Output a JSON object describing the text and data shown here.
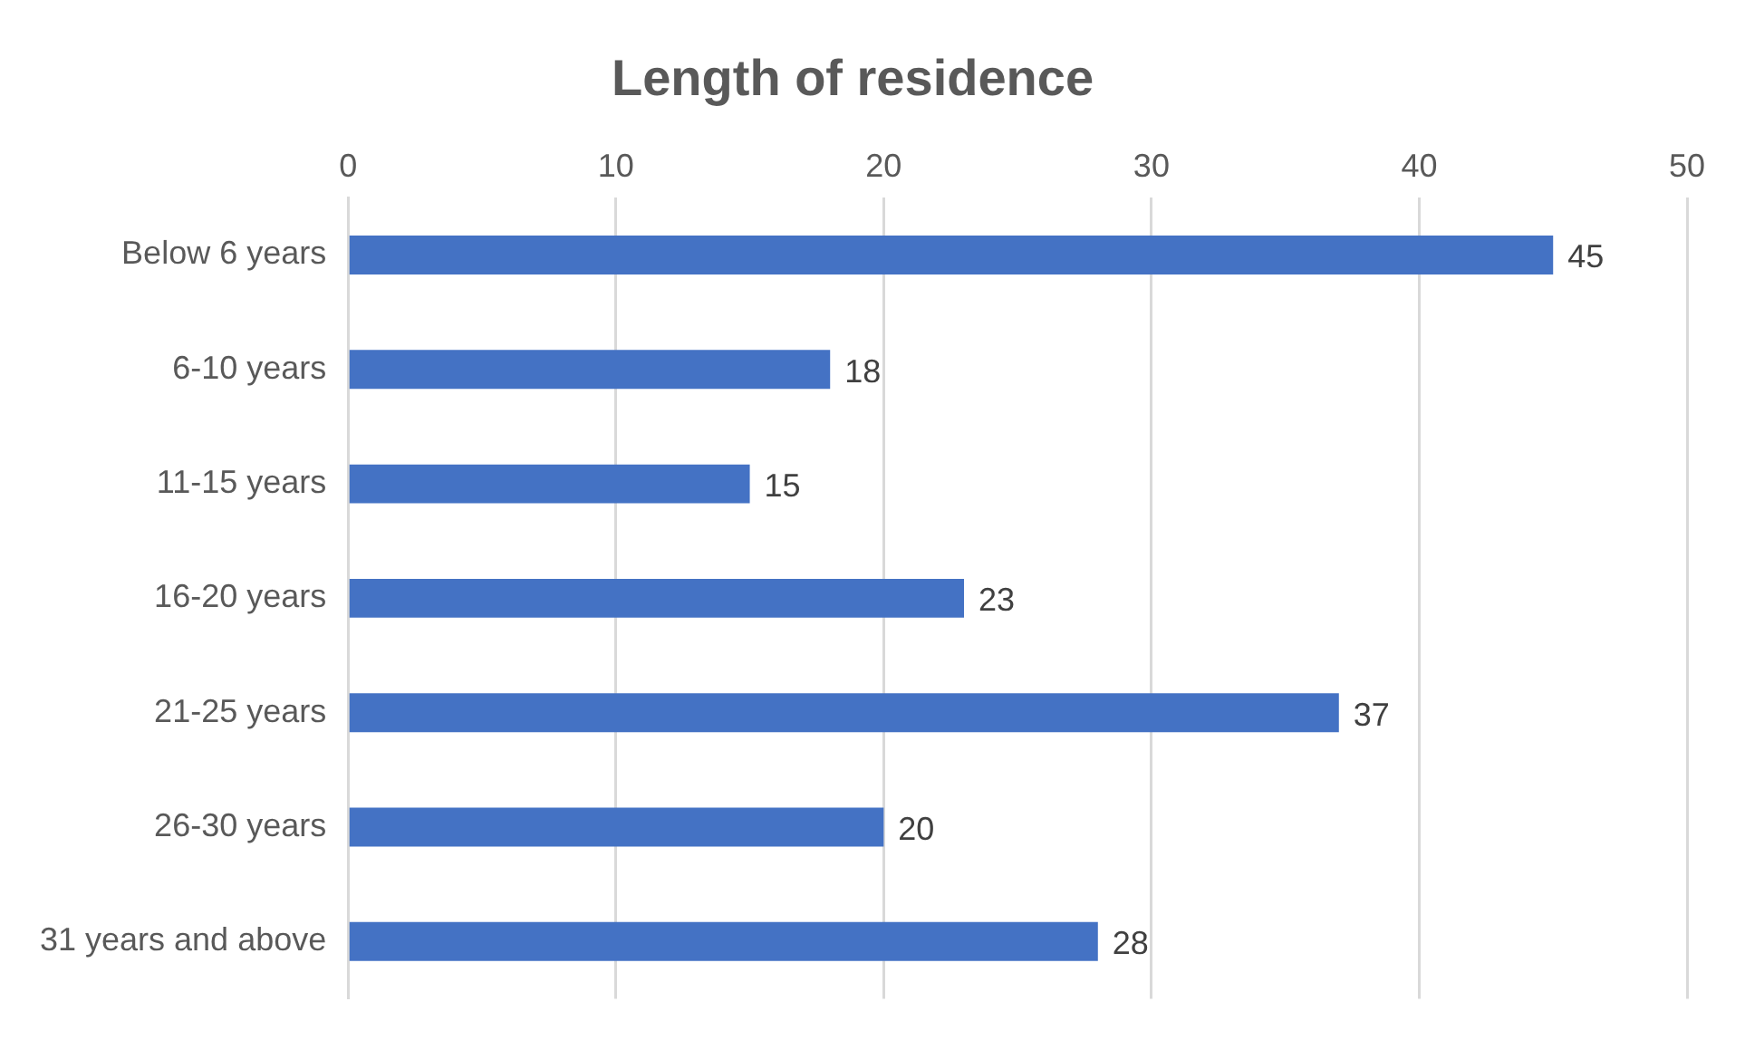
{
  "chart_data": {
    "type": "bar",
    "orientation": "horizontal",
    "title": "Length of residence",
    "categories": [
      "Below 6 years",
      "6-10 years",
      "11-15 years",
      "16-20 years",
      "21-25 years",
      "26-30 years",
      "31 years and above"
    ],
    "values": [
      45,
      18,
      15,
      23,
      37,
      20,
      28
    ],
    "color": "#4472c4",
    "xlim": [
      0,
      50
    ],
    "xticks": [
      0,
      10,
      20,
      30,
      40,
      50
    ],
    "grid": "x",
    "data_labels": true
  }
}
